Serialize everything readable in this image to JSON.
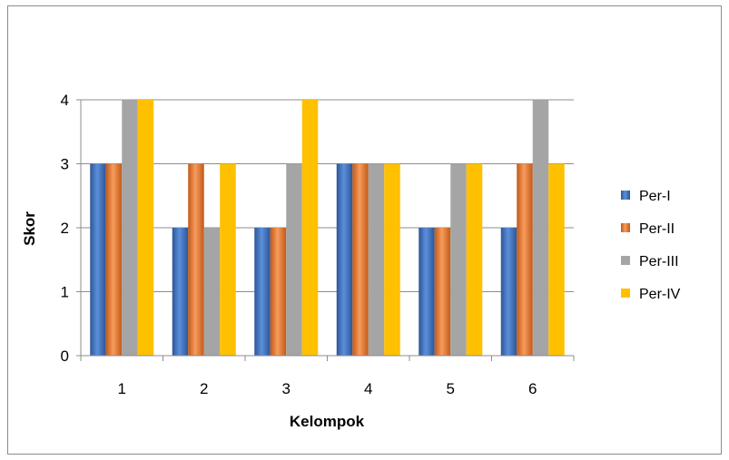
{
  "chart_data": {
    "type": "bar",
    "title": "",
    "xlabel": "Kelompok",
    "ylabel": "Skor",
    "categories": [
      "1",
      "2",
      "3",
      "4",
      "5",
      "6"
    ],
    "ylim": [
      0,
      4
    ],
    "yticks": [
      "0",
      "1",
      "2",
      "3",
      "4"
    ],
    "grid": true,
    "legend_position": "right",
    "series": [
      {
        "name": "Per-I",
        "color": "#4472C4",
        "values": [
          3,
          2,
          2,
          3,
          2,
          2
        ]
      },
      {
        "name": "Per-II",
        "color": "#ED7D31",
        "values": [
          3,
          3,
          2,
          3,
          2,
          3
        ]
      },
      {
        "name": "Per-III",
        "color": "#A5A5A5",
        "values": [
          4,
          2,
          3,
          3,
          3,
          4
        ]
      },
      {
        "name": "Per-IV",
        "color": "#FFC000",
        "values": [
          4,
          3,
          4,
          3,
          3,
          3
        ]
      }
    ]
  }
}
